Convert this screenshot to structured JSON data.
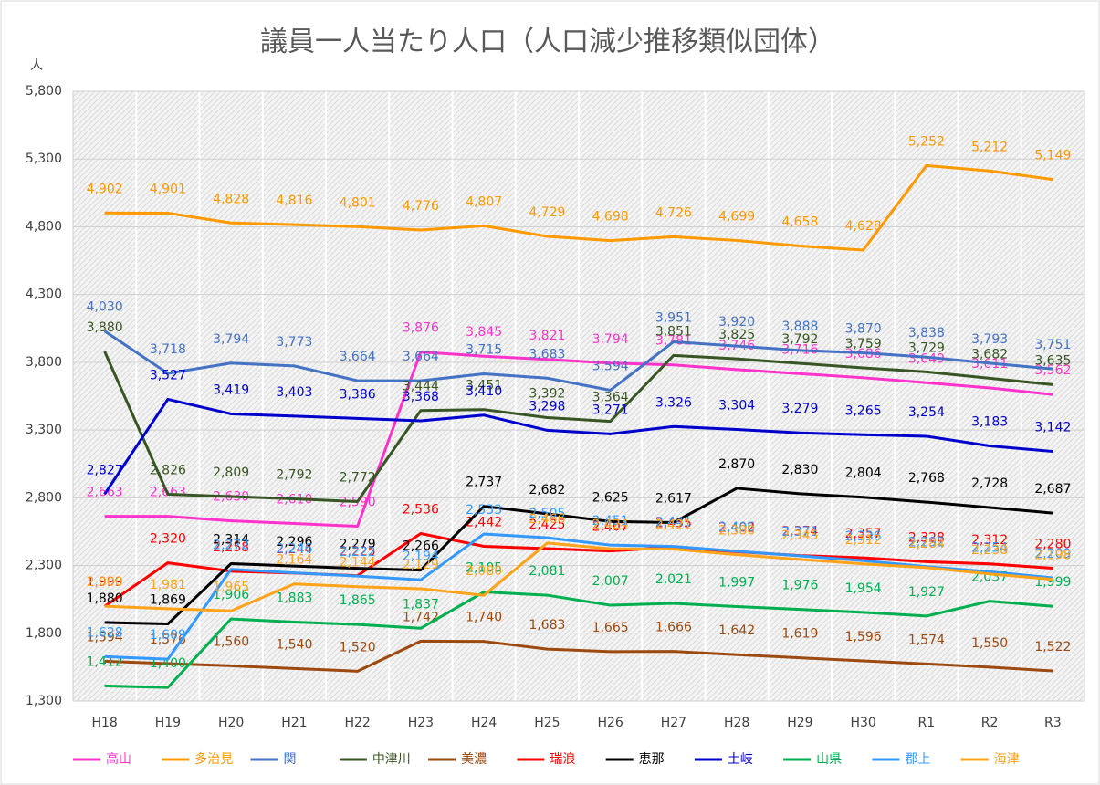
{
  "chart_data": {
    "type": "line",
    "title": "議員一人当たり人口（人口減少推移類似団体）",
    "y_label": "人",
    "categories": [
      "H18",
      "H19",
      "H20",
      "H21",
      "H22",
      "H23",
      "H24",
      "H25",
      "H26",
      "H27",
      "H28",
      "H29",
      "H30",
      "R1",
      "R2",
      "R3"
    ],
    "ylim": [
      1300,
      5800
    ],
    "yticks": [
      {
        "value": 1300,
        "label": "1,300"
      },
      {
        "value": 1800,
        "label": "1,800"
      },
      {
        "value": 2300,
        "label": "2,300"
      },
      {
        "value": 2800,
        "label": "2,800"
      },
      {
        "value": 3300,
        "label": "3,300"
      },
      {
        "value": 3800,
        "label": "3,800"
      },
      {
        "value": 4300,
        "label": "4,300"
      },
      {
        "value": 4800,
        "label": "4,800"
      },
      {
        "value": 5300,
        "label": "5,300"
      },
      {
        "value": 5800,
        "label": "5,800"
      }
    ],
    "grid": true,
    "legend": "bottom",
    "series": [
      {
        "name": "高山",
        "color": "#ff33cc",
        "values": [
          2663,
          2663,
          2630,
          2610,
          2590,
          3876,
          3845,
          3821,
          3794,
          3781,
          3746,
          3716,
          3686,
          3649,
          3611,
          3562
        ],
        "value_labels": [
          "2,663",
          "2,663",
          "2,630",
          "2,610",
          "2,590",
          "3,876",
          "3,845",
          "3,821",
          "3,794",
          "3,781",
          "3,746",
          "3,716",
          "3,686",
          "3,649",
          "3,611",
          "3,562"
        ]
      },
      {
        "name": "多治見",
        "color": "#ff9900",
        "values": [
          4902,
          4901,
          4828,
          4816,
          4801,
          4776,
          4807,
          4729,
          4698,
          4726,
          4699,
          4658,
          4628,
          5252,
          5212,
          5149
        ],
        "value_labels": [
          "4,902",
          "4,901",
          "4,828",
          "4,816",
          "4,801",
          "4,776",
          "4,807",
          "4,729",
          "4,698",
          "4,726",
          "4,699",
          "4,658",
          "4,628",
          "5,252",
          "5,212",
          "5,149"
        ]
      },
      {
        "name": "関",
        "color": "#4472c4",
        "values": [
          4030,
          3718,
          3794,
          3773,
          3664,
          3664,
          3715,
          3683,
          3594,
          3951,
          3920,
          3888,
          3870,
          3838,
          3793,
          3751
        ],
        "value_labels": [
          "4,030",
          "3,718",
          "3,794",
          "3,773",
          "3,664",
          "3,664",
          "3,715",
          "3,683",
          "3,594",
          "3,951",
          "3,920",
          "3,888",
          "3,870",
          "3,838",
          "3,793",
          "3,751"
        ]
      },
      {
        "name": "中津川",
        "color": "#375623",
        "values": [
          3880,
          2826,
          2809,
          2792,
          2772,
          3444,
          3451,
          3392,
          3364,
          3851,
          3825,
          3792,
          3759,
          3729,
          3682,
          3635
        ],
        "value_labels": [
          "3,880",
          "2,826",
          "2,809",
          "2,792",
          "2,772",
          "3,444",
          "3,451",
          "3,392",
          "3,364",
          "3,851",
          "3,825",
          "3,792",
          "3,759",
          "3,729",
          "3,682",
          "3,635"
        ]
      },
      {
        "name": "美濃",
        "color": "#9c4a10",
        "values": [
          1594,
          1576,
          1560,
          1540,
          1520,
          1742,
          1740,
          1683,
          1665,
          1666,
          1642,
          1619,
          1596,
          1574,
          1550,
          1522
        ],
        "value_labels": [
          "1,594",
          "1,576",
          "1,560",
          "1,540",
          "1,520",
          "1,742",
          "1,740",
          "1,683",
          "1,665",
          "1,666",
          "1,642",
          "1,619",
          "1,596",
          "1,574",
          "1,550",
          "1,522"
        ]
      },
      {
        "name": "瑞浪",
        "color": "#ff0000",
        "values": [
          1999,
          2320,
          2258,
          2244,
          2225,
          2536,
          2442,
          2425,
          2407,
          2435,
          2402,
          2374,
          2357,
          2328,
          2312,
          2280
        ],
        "value_labels": [
          "1,999",
          "2,320",
          "2,258",
          "2,244",
          "2,225",
          "2,536",
          "2,442",
          "2,425",
          "2,407",
          "2,435",
          "2,402",
          "2,374",
          "2,357",
          "2,328",
          "2,312",
          "2,280"
        ]
      },
      {
        "name": "恵那",
        "color": "#000000",
        "values": [
          1880,
          1869,
          2314,
          2296,
          2279,
          2266,
          2737,
          2682,
          2625,
          2617,
          2870,
          2830,
          2804,
          2768,
          2728,
          2687
        ],
        "value_labels": [
          "1,880",
          "1,869",
          "2,314",
          "2,296",
          "2,279",
          "2,266",
          "2,737",
          "2,682",
          "2,625",
          "2,617",
          "2,870",
          "2,830",
          "2,804",
          "2,768",
          "2,728",
          "2,687"
        ]
      },
      {
        "name": "土岐",
        "color": "#0000cc",
        "values": [
          2827,
          3527,
          3419,
          3403,
          3386,
          3368,
          3410,
          3298,
          3271,
          3326,
          3304,
          3279,
          3265,
          3254,
          3183,
          3142
        ],
        "value_labels": [
          "2,827",
          "3,527",
          "3,419",
          "3,403",
          "3,386",
          "3,368",
          "3,410",
          "3,298",
          "3,271",
          "3,326",
          "3,304",
          "3,279",
          "3,265",
          "3,254",
          "3,183",
          "3,142"
        ]
      },
      {
        "name": "山県",
        "color": "#00b050",
        "values": [
          1412,
          1400,
          1906,
          1883,
          1865,
          1837,
          2105,
          2081,
          2007,
          2021,
          1997,
          1976,
          1954,
          1927,
          2037,
          1999
        ],
        "value_labels": [
          "1,412",
          "1,400",
          "1,906",
          "1,883",
          "1,865",
          "1,837",
          "2,105",
          "2,081",
          "2,007",
          "2,021",
          "1,997",
          "1,976",
          "1,954",
          "1,927",
          "2,037",
          "1,999"
        ]
      },
      {
        "name": "郡上",
        "color": "#3399ff",
        "values": [
          1628,
          1609,
          2272,
          2246,
          2222,
          2194,
          2533,
          2505,
          2451,
          2441,
          2406,
          2371,
          2336,
          2292,
          2254,
          2209
        ],
        "value_labels": [
          "1,628",
          "1,609",
          "2,272",
          "2,246",
          "2,222",
          "2,194",
          "2,533",
          "2,505",
          "2,451",
          "2,441",
          "2,406",
          "2,371",
          "2,336",
          "2,292",
          "2,254",
          "2,209"
        ]
      },
      {
        "name": "海津",
        "color": "#ffa31a",
        "values": [
          2000,
          1981,
          1965,
          2164,
          2144,
          2129,
          2080,
          2466,
          2424,
          2421,
          2380,
          2345,
          2312,
          2284,
          2238,
          2198
        ],
        "value_labels": [
          "2,000",
          "1,981",
          "1,965",
          "2,164",
          "2,144",
          "2,129",
          "2,080",
          "2,466",
          "2,424",
          "2,421",
          "2,380",
          "2,345",
          "2,312",
          "2,284",
          "2,238",
          "2,198"
        ]
      }
    ]
  }
}
